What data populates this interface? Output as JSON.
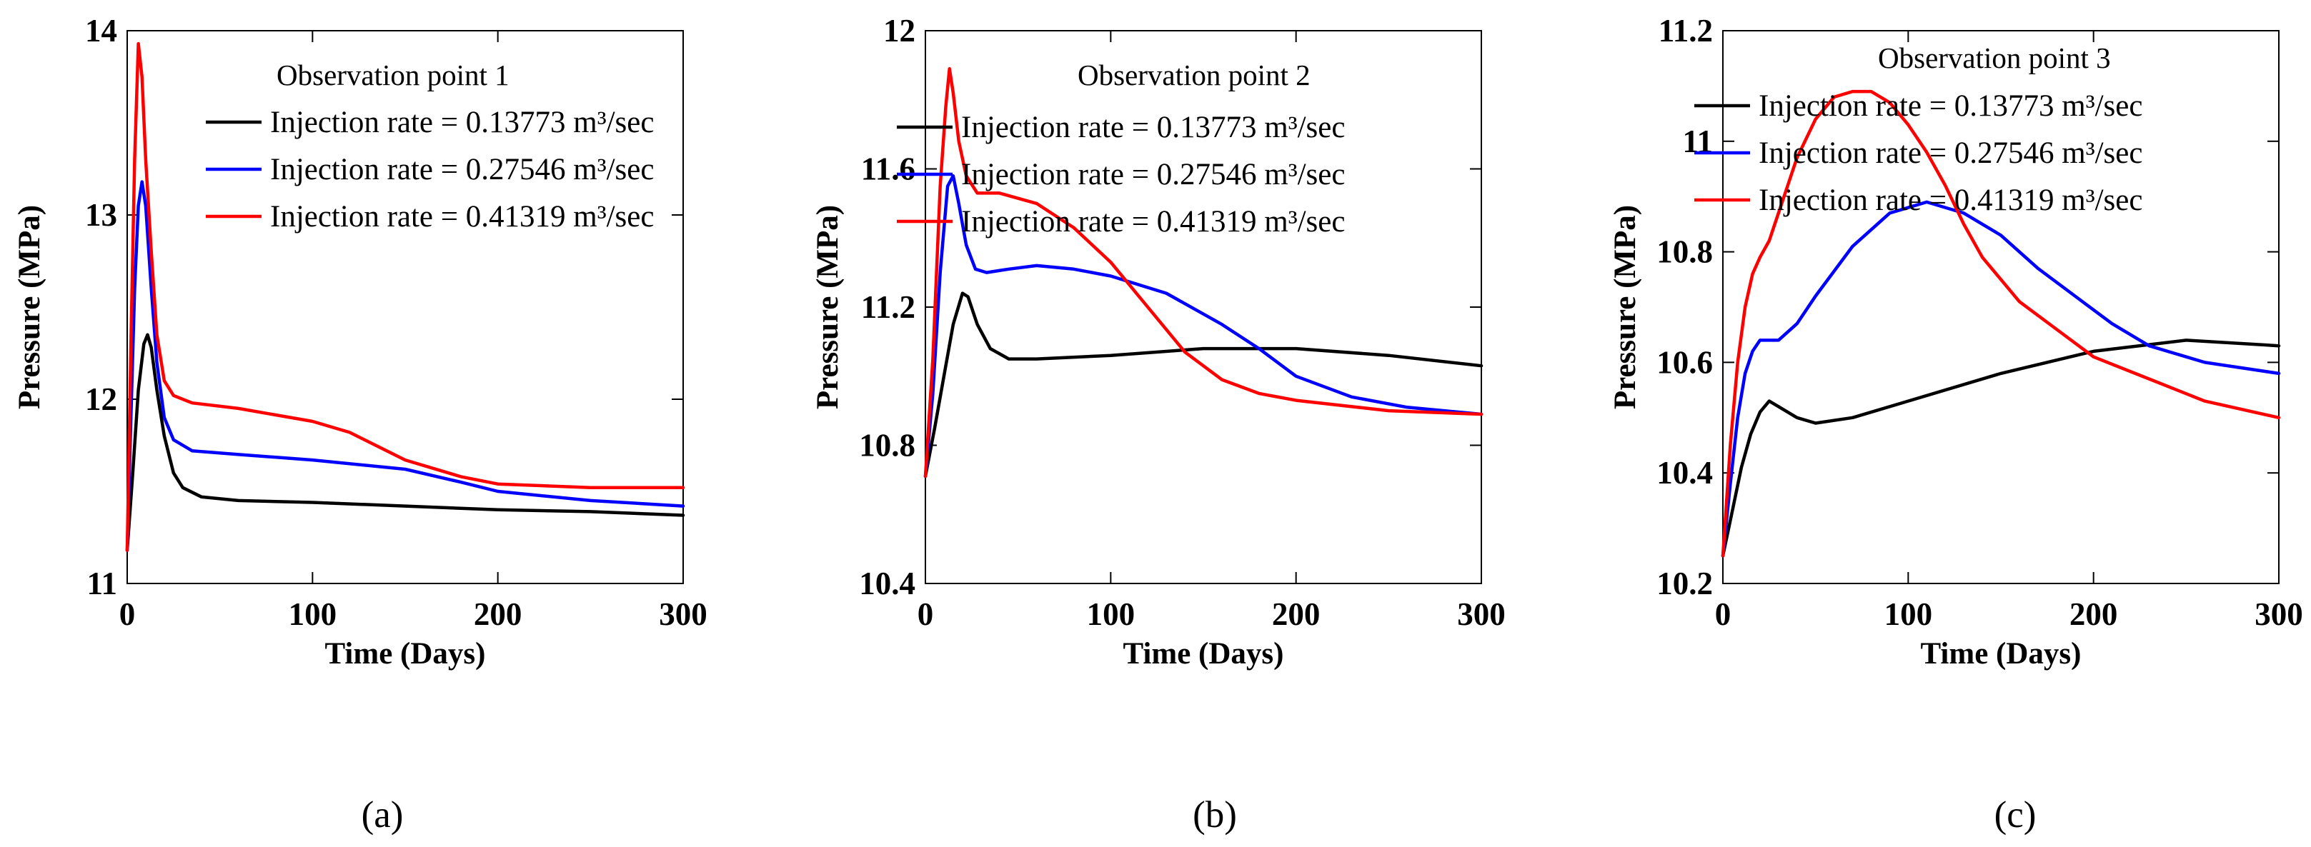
{
  "chart_data": [
    {
      "type": "line",
      "caption": "(a)",
      "legend_title": "Observation point 1",
      "xlabel": "Time (Days)",
      "ylabel": "Pressure (MPa)",
      "xlim": [
        0,
        300
      ],
      "ylim": [
        11,
        14
      ],
      "xticks": [
        0,
        100,
        200,
        300
      ],
      "yticks": [
        11,
        12,
        13,
        14
      ],
      "ytick_labels": [
        "11",
        "12",
        "13",
        "14"
      ],
      "legend_placement": "top-right",
      "grid": false,
      "series": [
        {
          "name": "Injection rate = 0.13773 m³/sec",
          "color": "#000000",
          "points": [
            [
              0,
              11.18
            ],
            [
              3,
              11.6
            ],
            [
              6,
              12.05
            ],
            [
              9,
              12.3
            ],
            [
              11,
              12.35
            ],
            [
              13,
              12.28
            ],
            [
              16,
              12.05
            ],
            [
              20,
              11.8
            ],
            [
              25,
              11.6
            ],
            [
              30,
              11.52
            ],
            [
              40,
              11.47
            ],
            [
              60,
              11.45
            ],
            [
              100,
              11.44
            ],
            [
              150,
              11.42
            ],
            [
              200,
              11.4
            ],
            [
              250,
              11.39
            ],
            [
              300,
              11.37
            ]
          ]
        },
        {
          "name": "Injection rate = 0.27546 m³/sec",
          "color": "#0000ff",
          "points": [
            [
              0,
              11.18
            ],
            [
              2,
              11.9
            ],
            [
              4,
              12.6
            ],
            [
              6,
              13.05
            ],
            [
              8,
              13.18
            ],
            [
              10,
              13.05
            ],
            [
              13,
              12.6
            ],
            [
              16,
              12.2
            ],
            [
              20,
              11.9
            ],
            [
              25,
              11.78
            ],
            [
              35,
              11.72
            ],
            [
              60,
              11.7
            ],
            [
              100,
              11.67
            ],
            [
              150,
              11.62
            ],
            [
              180,
              11.55
            ],
            [
              200,
              11.5
            ],
            [
              250,
              11.45
            ],
            [
              300,
              11.42
            ]
          ]
        },
        {
          "name": "Injection rate = 0.41319 m³/sec",
          "color": "#ff0000",
          "points": [
            [
              0,
              11.18
            ],
            [
              2,
              12.3
            ],
            [
              4,
              13.3
            ],
            [
              6,
              13.93
            ],
            [
              8,
              13.75
            ],
            [
              10,
              13.3
            ],
            [
              13,
              12.8
            ],
            [
              16,
              12.35
            ],
            [
              20,
              12.1
            ],
            [
              25,
              12.02
            ],
            [
              35,
              11.98
            ],
            [
              60,
              11.95
            ],
            [
              100,
              11.88
            ],
            [
              120,
              11.82
            ],
            [
              150,
              11.67
            ],
            [
              180,
              11.58
            ],
            [
              200,
              11.54
            ],
            [
              250,
              11.52
            ],
            [
              300,
              11.52
            ]
          ]
        }
      ]
    },
    {
      "type": "line",
      "caption": "(b)",
      "legend_title": "Observation point 2",
      "xlabel": "Time (Days)",
      "ylabel": "Pressure (MPa)",
      "xlim": [
        0,
        300
      ],
      "ylim": [
        10.4,
        12
      ],
      "xticks": [
        0,
        100,
        200,
        300
      ],
      "yticks": [
        10.4,
        10.8,
        11.2,
        11.6,
        12
      ],
      "ytick_labels": [
        "10.4",
        "10.8",
        "11.2",
        "11.6",
        "12"
      ],
      "legend_placement": "top-right",
      "grid": false,
      "series": [
        {
          "name": "Injection rate = 0.13773 m³/sec",
          "color": "#000000",
          "points": [
            [
              0,
              10.71
            ],
            [
              5,
              10.85
            ],
            [
              10,
              11.0
            ],
            [
              15,
              11.15
            ],
            [
              20,
              11.24
            ],
            [
              23,
              11.23
            ],
            [
              28,
              11.15
            ],
            [
              35,
              11.08
            ],
            [
              45,
              11.05
            ],
            [
              60,
              11.05
            ],
            [
              100,
              11.06
            ],
            [
              150,
              11.08
            ],
            [
              200,
              11.08
            ],
            [
              250,
              11.06
            ],
            [
              300,
              11.03
            ]
          ]
        },
        {
          "name": "Injection rate = 0.27546 m³/sec",
          "color": "#0000ff",
          "points": [
            [
              0,
              10.71
            ],
            [
              4,
              10.95
            ],
            [
              8,
              11.3
            ],
            [
              12,
              11.55
            ],
            [
              15,
              11.58
            ],
            [
              18,
              11.5
            ],
            [
              22,
              11.38
            ],
            [
              27,
              11.31
            ],
            [
              33,
              11.3
            ],
            [
              45,
              11.31
            ],
            [
              60,
              11.32
            ],
            [
              80,
              11.31
            ],
            [
              100,
              11.29
            ],
            [
              130,
              11.24
            ],
            [
              160,
              11.15
            ],
            [
              180,
              11.08
            ],
            [
              200,
              11.0
            ],
            [
              230,
              10.94
            ],
            [
              260,
              10.91
            ],
            [
              300,
              10.89
            ]
          ]
        },
        {
          "name": "Injection rate = 0.41319 m³/sec",
          "color": "#ff0000",
          "points": [
            [
              0,
              10.71
            ],
            [
              4,
              11.05
            ],
            [
              8,
              11.55
            ],
            [
              11,
              11.78
            ],
            [
              13,
              11.89
            ],
            [
              15,
              11.82
            ],
            [
              18,
              11.68
            ],
            [
              22,
              11.58
            ],
            [
              28,
              11.53
            ],
            [
              40,
              11.53
            ],
            [
              60,
              11.5
            ],
            [
              80,
              11.43
            ],
            [
              100,
              11.33
            ],
            [
              120,
              11.2
            ],
            [
              140,
              11.07
            ],
            [
              160,
              10.99
            ],
            [
              180,
              10.95
            ],
            [
              200,
              10.93
            ],
            [
              250,
              10.9
            ],
            [
              300,
              10.89
            ]
          ]
        }
      ]
    },
    {
      "type": "line",
      "caption": "(c)",
      "legend_title": "Observation point 3",
      "xlabel": "Time (Days)",
      "ylabel": "Pressure (MPa)",
      "xlim": [
        0,
        300
      ],
      "ylim": [
        10.2,
        11.2
      ],
      "xticks": [
        0,
        100,
        200,
        300
      ],
      "yticks": [
        10.2,
        10.4,
        10.6,
        10.8,
        11,
        11.2
      ],
      "ytick_labels": [
        "10.2",
        "10.4",
        "10.6",
        "10.8",
        "11",
        "11.2"
      ],
      "legend_placement": "top-right",
      "grid": false,
      "series": [
        {
          "name": "Injection rate = 0.13773 m³/sec",
          "color": "#000000",
          "points": [
            [
              0,
              10.25
            ],
            [
              5,
              10.33
            ],
            [
              10,
              10.41
            ],
            [
              15,
              10.47
            ],
            [
              20,
              10.51
            ],
            [
              25,
              10.53
            ],
            [
              30,
              10.52
            ],
            [
              40,
              10.5
            ],
            [
              50,
              10.49
            ],
            [
              70,
              10.5
            ],
            [
              100,
              10.53
            ],
            [
              150,
              10.58
            ],
            [
              200,
              10.62
            ],
            [
              250,
              10.64
            ],
            [
              300,
              10.63
            ]
          ]
        },
        {
          "name": "Injection rate = 0.27546 m³/sec",
          "color": "#0000ff",
          "points": [
            [
              0,
              10.25
            ],
            [
              4,
              10.38
            ],
            [
              8,
              10.5
            ],
            [
              12,
              10.58
            ],
            [
              16,
              10.62
            ],
            [
              20,
              10.64
            ],
            [
              25,
              10.64
            ],
            [
              30,
              10.64
            ],
            [
              40,
              10.67
            ],
            [
              50,
              10.72
            ],
            [
              70,
              10.81
            ],
            [
              90,
              10.87
            ],
            [
              110,
              10.89
            ],
            [
              130,
              10.87
            ],
            [
              150,
              10.83
            ],
            [
              170,
              10.77
            ],
            [
              190,
              10.72
            ],
            [
              210,
              10.67
            ],
            [
              230,
              10.63
            ],
            [
              260,
              10.6
            ],
            [
              300,
              10.58
            ]
          ]
        },
        {
          "name": "Injection rate = 0.41319 m³/sec",
          "color": "#ff0000",
          "points": [
            [
              0,
              10.25
            ],
            [
              4,
              10.45
            ],
            [
              8,
              10.6
            ],
            [
              12,
              10.7
            ],
            [
              16,
              10.76
            ],
            [
              20,
              10.79
            ],
            [
              25,
              10.82
            ],
            [
              30,
              10.87
            ],
            [
              40,
              10.97
            ],
            [
              50,
              11.04
            ],
            [
              60,
              11.08
            ],
            [
              70,
              11.09
            ],
            [
              80,
              11.09
            ],
            [
              90,
              11.07
            ],
            [
              100,
              11.03
            ],
            [
              110,
              10.98
            ],
            [
              120,
              10.92
            ],
            [
              130,
              10.85
            ],
            [
              140,
              10.79
            ],
            [
              160,
              10.71
            ],
            [
              180,
              10.66
            ],
            [
              200,
              10.61
            ],
            [
              230,
              10.57
            ],
            [
              260,
              10.53
            ],
            [
              300,
              10.5
            ]
          ]
        }
      ]
    }
  ]
}
